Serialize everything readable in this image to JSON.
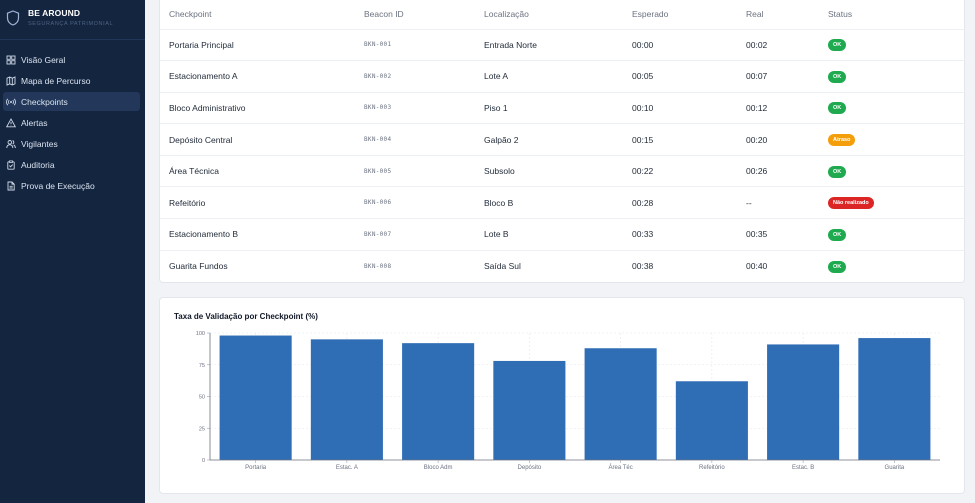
{
  "brand": {
    "name": "BE AROUND",
    "tagline": "SEGURANÇA PATRIMONIAL"
  },
  "sidebar": {
    "items": [
      {
        "label": "Visão Geral",
        "icon": "grid-icon",
        "active": false
      },
      {
        "label": "Mapa de Percurso",
        "icon": "map-icon",
        "active": false
      },
      {
        "label": "Checkpoints",
        "icon": "beacon-icon",
        "active": true
      },
      {
        "label": "Alertas",
        "icon": "warning-icon",
        "active": false
      },
      {
        "label": "Vigilantes",
        "icon": "users-icon",
        "active": false
      },
      {
        "label": "Auditoria",
        "icon": "clipboard-icon",
        "active": false
      },
      {
        "label": "Prova de Execução",
        "icon": "document-icon",
        "active": false
      }
    ]
  },
  "table": {
    "headers": [
      "Checkpoint",
      "Beacon ID",
      "Localização",
      "Esperado",
      "Real",
      "Status"
    ],
    "rows": [
      {
        "checkpoint": "Portaria Principal",
        "beacon": "BKN-001",
        "local": "Entrada Norte",
        "esperado": "00:00",
        "real": "00:02",
        "status": "OK",
        "status_type": "ok"
      },
      {
        "checkpoint": "Estacionamento A",
        "beacon": "BKN-002",
        "local": "Lote A",
        "esperado": "00:05",
        "real": "00:07",
        "status": "OK",
        "status_type": "ok"
      },
      {
        "checkpoint": "Bloco Administrativo",
        "beacon": "BKN-003",
        "local": "Piso 1",
        "esperado": "00:10",
        "real": "00:12",
        "status": "OK",
        "status_type": "ok"
      },
      {
        "checkpoint": "Depósito Central",
        "beacon": "BKN-004",
        "local": "Galpão 2",
        "esperado": "00:15",
        "real": "00:20",
        "status": "Atraso",
        "status_type": "late"
      },
      {
        "checkpoint": "Área Técnica",
        "beacon": "BKN-005",
        "local": "Subsolo",
        "esperado": "00:22",
        "real": "00:26",
        "status": "OK",
        "status_type": "ok"
      },
      {
        "checkpoint": "Refeitório",
        "beacon": "BKN-006",
        "local": "Bloco B",
        "esperado": "00:28",
        "real": "--",
        "status": "Não realizado",
        "status_type": "missed"
      },
      {
        "checkpoint": "Estacionamento B",
        "beacon": "BKN-007",
        "local": "Lote B",
        "esperado": "00:33",
        "real": "00:35",
        "status": "OK",
        "status_type": "ok"
      },
      {
        "checkpoint": "Guarita Fundos",
        "beacon": "BKN-008",
        "local": "Saída Sul",
        "esperado": "00:38",
        "real": "00:40",
        "status": "OK",
        "status_type": "ok"
      }
    ]
  },
  "colors": {
    "sidebar_bg": "#14253f",
    "bar": "#2f6db5",
    "ok": "#1faa4f",
    "late": "#f59e0b",
    "missed": "#dc2626"
  },
  "chart_data": {
    "type": "bar",
    "title": "Taxa de Validação por Checkpoint (%)",
    "categories": [
      "Portaria",
      "Estac. A",
      "Bloco Adm",
      "Depósito",
      "Área Téc",
      "Refeitório",
      "Estac. B",
      "Guarita"
    ],
    "values": [
      98,
      95,
      92,
      78,
      88,
      62,
      91,
      96
    ],
    "xlabel": "",
    "ylabel": "",
    "ylim": [
      0,
      100
    ],
    "yticks": [
      0,
      25,
      50,
      75,
      100
    ],
    "grid": true,
    "legend": "none"
  }
}
